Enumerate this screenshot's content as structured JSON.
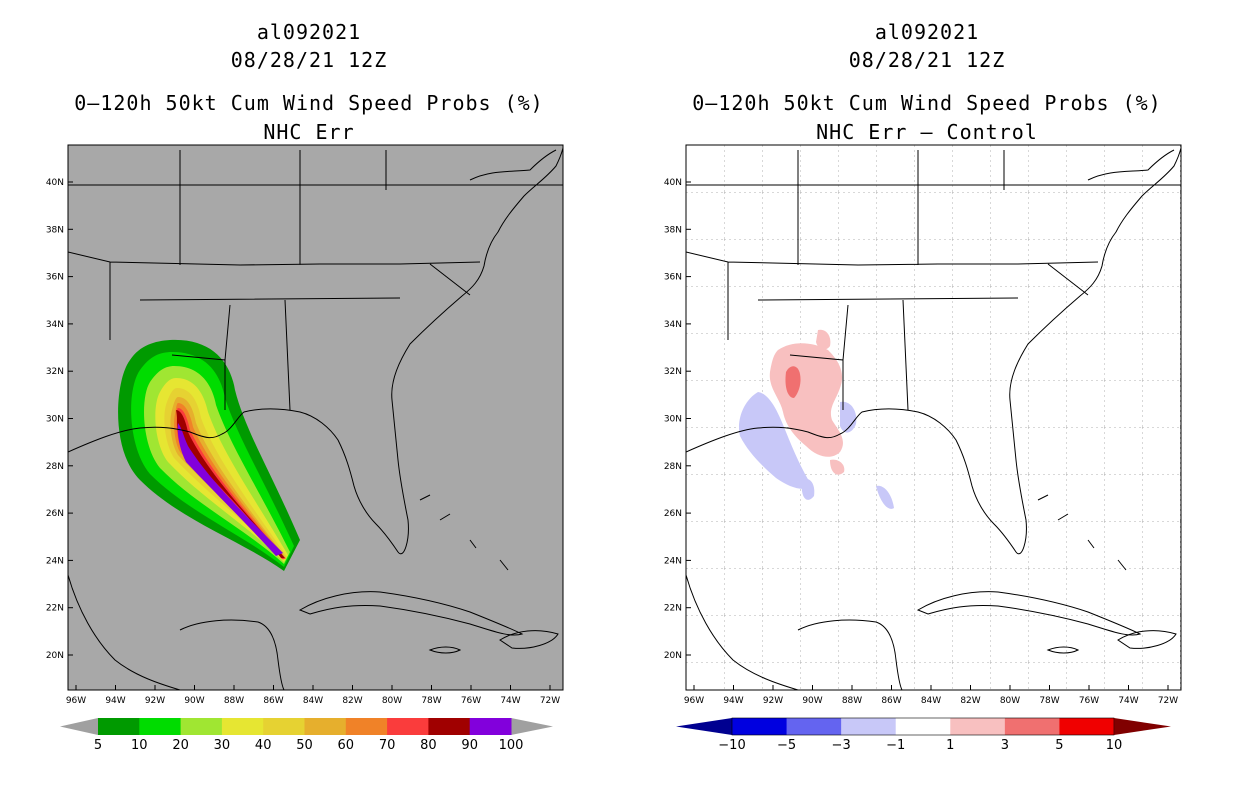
{
  "left_panel": {
    "storm_id": "al092021",
    "datetime": "08/28/21 12Z",
    "product": "0–120h 50kt Cum Wind Speed Probs (%)",
    "subtitle": "NHC Err",
    "lat_labels": [
      "40N",
      "38N",
      "36N",
      "34N",
      "32N",
      "30N",
      "28N",
      "26N",
      "24N",
      "22N",
      "20N"
    ],
    "lon_labels": [
      "96W",
      "94W",
      "92W",
      "90W",
      "88W",
      "86W",
      "84W",
      "82W",
      "80W",
      "78W",
      "76W",
      "74W",
      "72W"
    ],
    "colorbar": {
      "labels": [
        "5",
        "10",
        "20",
        "30",
        "40",
        "50",
        "60",
        "70",
        "80",
        "90",
        "100"
      ],
      "colors": [
        "#009a00",
        "#00dc00",
        "#a0e632",
        "#e6e632",
        "#e6d232",
        "#e6af2d",
        "#f08228",
        "#fa3c3c",
        "#a00000",
        "#8200dc"
      ],
      "end_color": "#a0a0a0"
    }
  },
  "right_panel": {
    "storm_id": "al092021",
    "datetime": "08/28/21 12Z",
    "product": "0–120h 50kt Cum Wind Speed Probs (%)",
    "subtitle": "NHC Err – Control",
    "lat_labels": [
      "40N",
      "38N",
      "36N",
      "34N",
      "32N",
      "30N",
      "28N",
      "26N",
      "24N",
      "22N",
      "20N"
    ],
    "lon_labels": [
      "96W",
      "94W",
      "92W",
      "90W",
      "88W",
      "86W",
      "84W",
      "82W",
      "80W",
      "78W",
      "76W",
      "74W",
      "72W"
    ],
    "colorbar": {
      "labels": [
        "−10",
        "−5",
        "−3",
        "−1",
        "1",
        "3",
        "5",
        "10"
      ],
      "colors": [
        "#0000e0",
        "#6464f0",
        "#c8c8f8",
        "#ffffff",
        "#f8c0c0",
        "#f07070",
        "#f00000"
      ],
      "low_color": "#000090",
      "high_color": "#800000"
    }
  }
}
